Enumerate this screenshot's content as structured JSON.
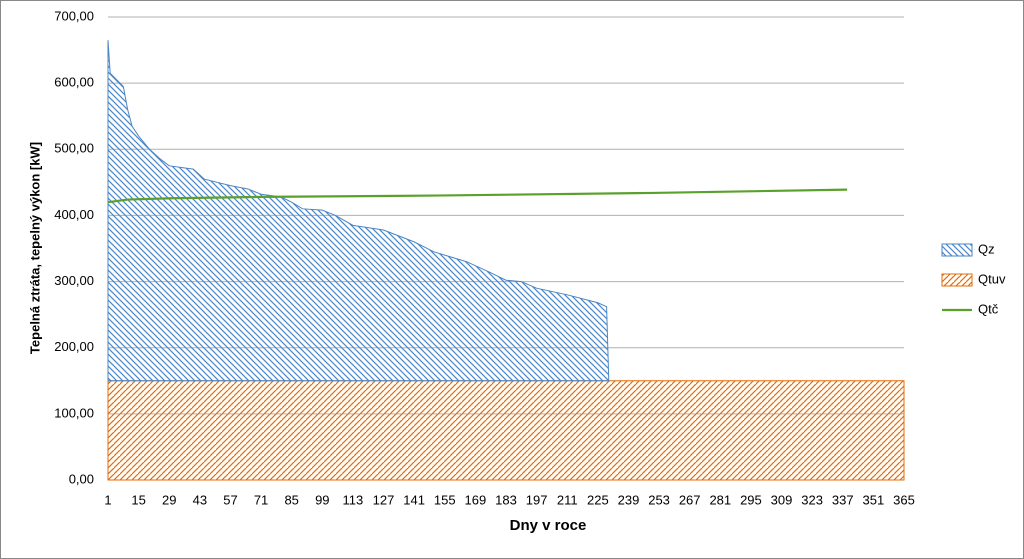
{
  "chart_data": {
    "type": "area",
    "xlabel": "Dny v roce",
    "ylabel": "Tepelná ztráta, tepelný výkon [kW]",
    "xlim": [
      1,
      365
    ],
    "xticks": [
      1,
      15,
      29,
      43,
      57,
      71,
      85,
      99,
      113,
      127,
      141,
      155,
      169,
      183,
      197,
      211,
      225,
      239,
      253,
      267,
      281,
      295,
      309,
      323,
      337,
      351,
      365
    ],
    "ylim": [
      0,
      700
    ],
    "yticks": [
      {
        "value": 0,
        "label": "0,00"
      },
      {
        "value": 100,
        "label": "100,00"
      },
      {
        "value": 200,
        "label": "200,00"
      },
      {
        "value": 300,
        "label": "300,00"
      },
      {
        "value": 400,
        "label": "400,00"
      },
      {
        "value": 500,
        "label": "500,00"
      },
      {
        "value": 600,
        "label": "600,00"
      },
      {
        "value": 700,
        "label": "700,00"
      }
    ],
    "grid": true,
    "stacked": true,
    "legend": "right",
    "series": [
      {
        "name": "Qz",
        "type": "area",
        "color": "#4a86c5",
        "hatch": "back",
        "x": [
          1,
          2,
          5,
          8,
          10,
          12,
          15,
          20,
          25,
          29,
          40,
          45,
          57,
          65,
          71,
          80,
          85,
          90,
          99,
          105,
          113,
          127,
          141,
          150,
          155,
          165,
          175,
          183,
          190,
          197,
          211,
          225,
          229,
          230
        ],
        "values": [
          515,
          465,
          455,
          445,
          410,
          385,
          370,
          350,
          335,
          325,
          320,
          305,
          295,
          290,
          282,
          278,
          270,
          260,
          258,
          250,
          235,
          228,
          210,
          195,
          190,
          180,
          165,
          152,
          150,
          140,
          130,
          118,
          112,
          0
        ]
      },
      {
        "name": "Qtuv",
        "type": "area",
        "color": "#e46c0a",
        "hatch": "forward",
        "x": [
          1,
          365
        ],
        "values": [
          150,
          150
        ]
      },
      {
        "name": "Qtč",
        "type": "line",
        "color": "#5aa02c",
        "x": [
          1,
          10,
          30,
          71,
          150,
          250,
          339
        ],
        "values": [
          420,
          424,
          426,
          428,
          430,
          434,
          439
        ]
      }
    ]
  }
}
